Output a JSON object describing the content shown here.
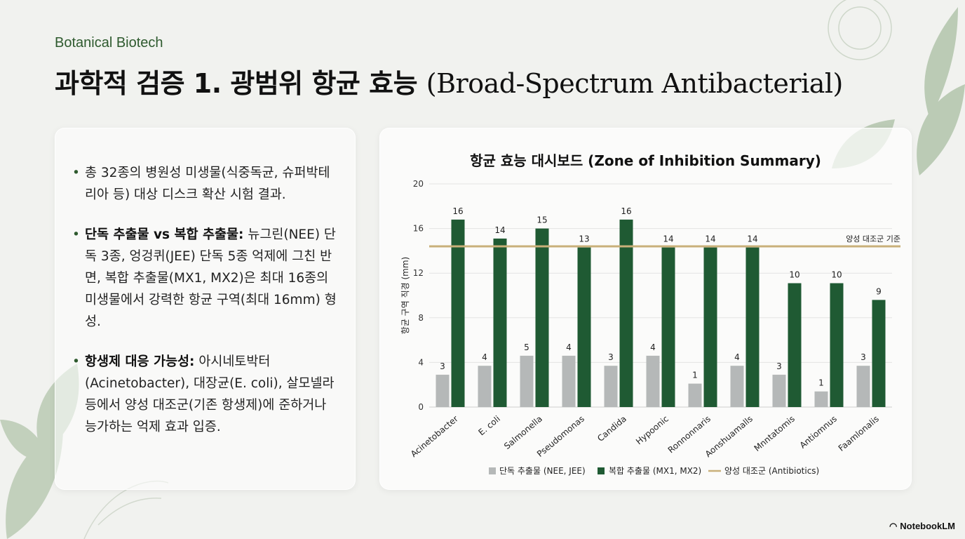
{
  "header": {
    "eyebrow": "Botanical Biotech",
    "title_ko": "과학적 검증 1. 광범위 항균 효능",
    "title_en": "(Broad-Spectrum Antibacterial)"
  },
  "bullets": [
    {
      "bold": "",
      "text": "총 32종의 병원성 미생물(식중독균, 슈퍼박테리아 등) 대상 디스크 확산 시험 결과."
    },
    {
      "bold": "단독 추출물 vs 복합 추출물:",
      "text": " 뉴그린(NEE) 단독 3종, 엉겅퀴(JEE) 단독 5종 억제에 그친 반면, 복합 추출물(MX1, MX2)은 최대 16종의 미생물에서 강력한 항균 구역(최대 16mm) 형성."
    },
    {
      "bold": "항생제 대응 가능성:",
      "text": " 아시네토박터(Acinetobacter), 대장균(E. coli), 살모넬라 등에서 양성 대조군(기존 항생제)에 준하거나 능가하는 억제 효과 입증."
    }
  ],
  "chart_data": {
    "type": "bar",
    "title": "항균 효능 대시보드 (Zone of Inhibition Summary)",
    "ylabel": "항균 구역 직경 (mm)",
    "xlabel": "",
    "ylim": [
      0,
      20
    ],
    "yticks": [
      0,
      4,
      8,
      12,
      16,
      20
    ],
    "categories": [
      "Acinetobacter",
      "E. coli",
      "Salmonella",
      "Pseudomonas",
      "Candida",
      "Hypoonic",
      "Ronnonnaris",
      "Aonshuamalls",
      "Mnntatomis",
      "Antiomnus",
      "Faamlonalis"
    ],
    "series": [
      {
        "name": "단독 추출물 (NEE, JEE)",
        "color": "#b5b8b8",
        "values": [
          3,
          4,
          5,
          4,
          3,
          4,
          1,
          4,
          3,
          1,
          3
        ]
      },
      {
        "name": "복합 추출물 (MX1, MX2)",
        "color": "#1f5a33",
        "values": [
          16,
          14,
          15,
          13,
          16,
          14,
          14,
          14,
          10,
          10,
          9
        ]
      }
    ],
    "bar_heights": {
      "single": [
        2.9,
        3.7,
        4.6,
        4.6,
        3.7,
        4.6,
        2.1,
        3.7,
        2.9,
        1.4,
        3.7
      ],
      "combo": [
        16.8,
        15.1,
        16.0,
        14.3,
        16.8,
        14.3,
        14.3,
        14.3,
        11.1,
        11.1,
        9.6
      ]
    },
    "reference_line": {
      "name": "양성 대조군 (Antibiotics)",
      "label": "양성 대조군 기준",
      "value": 14.4,
      "color": "#c9b07a"
    },
    "legend_position": "bottom"
  },
  "brand": {
    "name": "NotebookLM"
  }
}
